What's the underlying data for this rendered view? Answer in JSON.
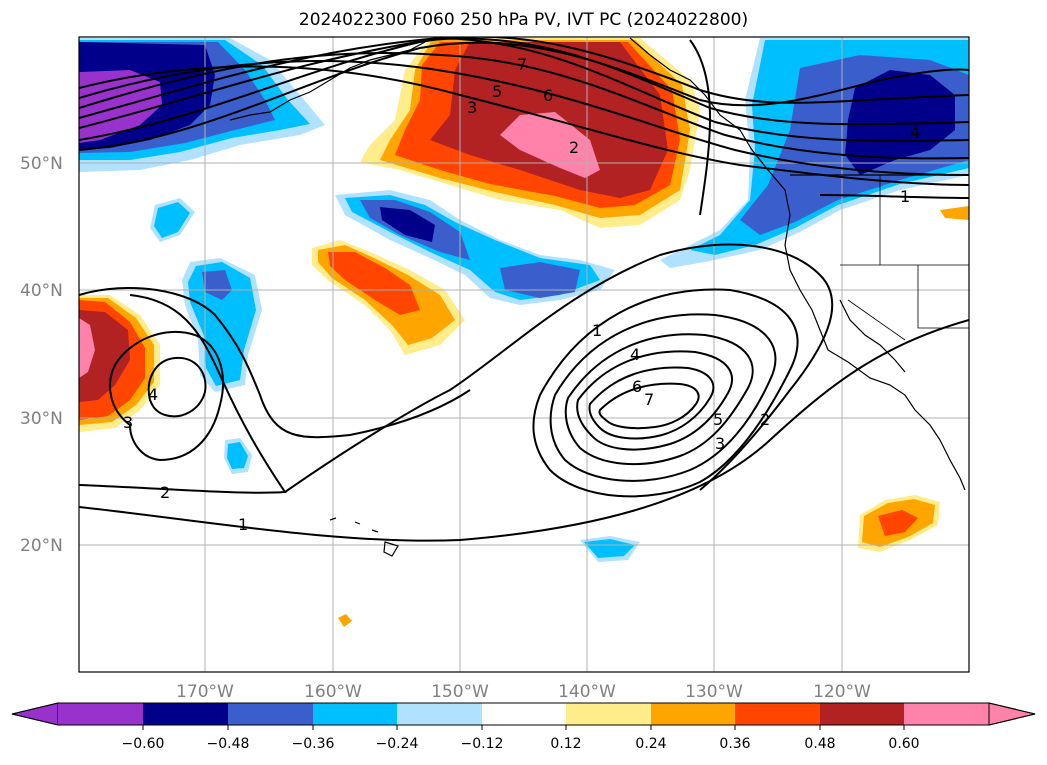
{
  "title": "2024022300 F060 250 hPa PV, IVT PC (2024022800)",
  "colors": {
    "pv_neg": [
      "#9932CC",
      "#00008B",
      "#3A5FCD",
      "#00BFFF",
      "#B0E2FF"
    ],
    "pv_pos": [
      "#FFEC8B",
      "#FFA500",
      "#FF4500",
      "#B22222",
      "#FF82AB"
    ],
    "gridline": "#b0b0b0",
    "contour": "#000000"
  },
  "axes": {
    "lat_labels": [
      "50°N",
      "40°N",
      "30°N",
      "20°N"
    ],
    "lon_labels": [
      "170°W",
      "160°W",
      "150°W",
      "140°W",
      "130°W",
      "120°W"
    ]
  },
  "colorbar": {
    "ticks": [
      "−0.60",
      "−0.48",
      "−0.36",
      "−0.24",
      "−0.12",
      "0.12",
      "0.24",
      "0.36",
      "0.48",
      "0.60"
    ],
    "boundaries": [
      -0.6,
      -0.48,
      -0.36,
      -0.24,
      -0.12,
      0.12,
      0.24,
      0.36,
      0.48,
      0.6
    ],
    "extend": "both"
  },
  "contour_labels": [
    "7",
    "6",
    "5",
    "3",
    "2",
    "4",
    "1",
    "1",
    "4",
    "6",
    "7",
    "5",
    "3",
    "2",
    "4",
    "3",
    "2",
    "1"
  ],
  "chart_data": {
    "type": "heatmap",
    "title": "2024022300 F060 250 hPa PV, IVT PC (2024022800)",
    "xlabel": "",
    "ylabel": "",
    "x_ticks": [
      "170°W",
      "160°W",
      "150°W",
      "140°W",
      "130°W",
      "120°W"
    ],
    "y_ticks": [
      "50°N",
      "40°N",
      "30°N",
      "20°N"
    ],
    "filled_field": "250 hPa PV (shaded)",
    "contour_field": "IVT PC (contours)",
    "contour_levels": [
      1,
      2,
      3,
      4,
      5,
      6,
      7
    ],
    "color_levels": [
      -0.6,
      -0.48,
      -0.36,
      -0.24,
      -0.12,
      0.12,
      0.24,
      0.36,
      0.48,
      0.6
    ],
    "grid": true
  }
}
